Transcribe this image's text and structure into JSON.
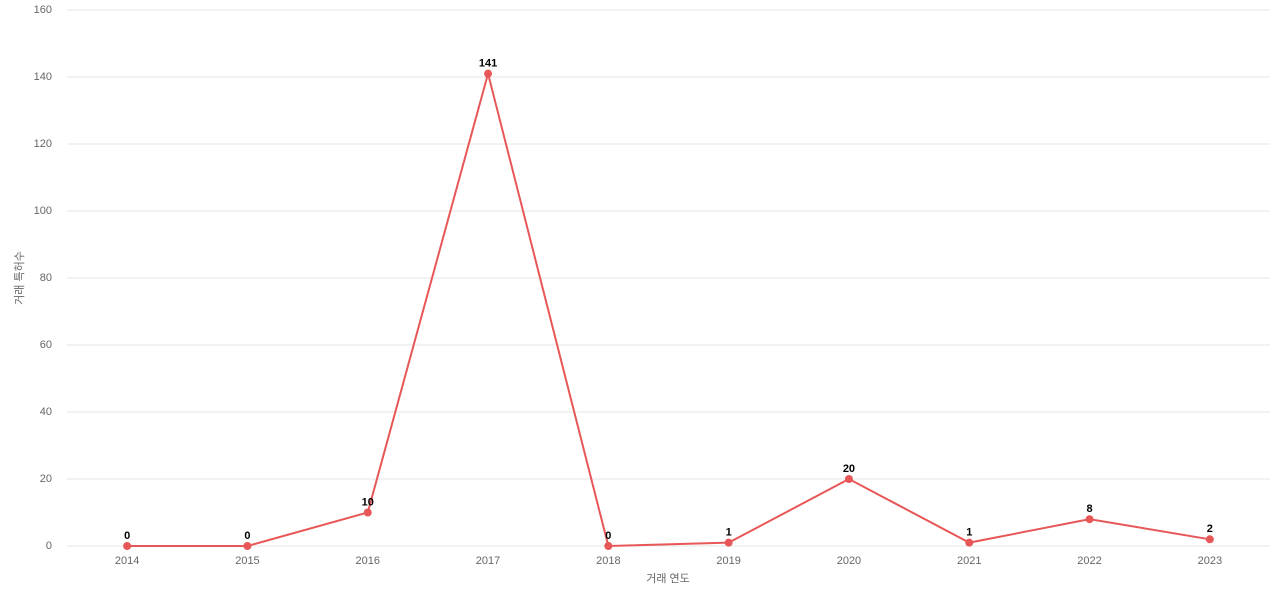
{
  "chart_data": {
    "type": "line",
    "categories": [
      "2014",
      "2015",
      "2016",
      "2017",
      "2018",
      "2019",
      "2020",
      "2021",
      "2022",
      "2023"
    ],
    "series": [
      {
        "name": "거래 특허수",
        "color": "#e85757",
        "values": [
          0,
          0,
          10,
          141,
          0,
          1,
          20,
          1,
          8,
          2
        ]
      }
    ],
    "x_label": "거래 연도",
    "y_label": "거래 특허수",
    "ylim": [
      0,
      160
    ],
    "yticks": [
      0,
      20,
      40,
      60,
      80,
      100,
      120,
      140,
      160
    ],
    "grid": true
  }
}
